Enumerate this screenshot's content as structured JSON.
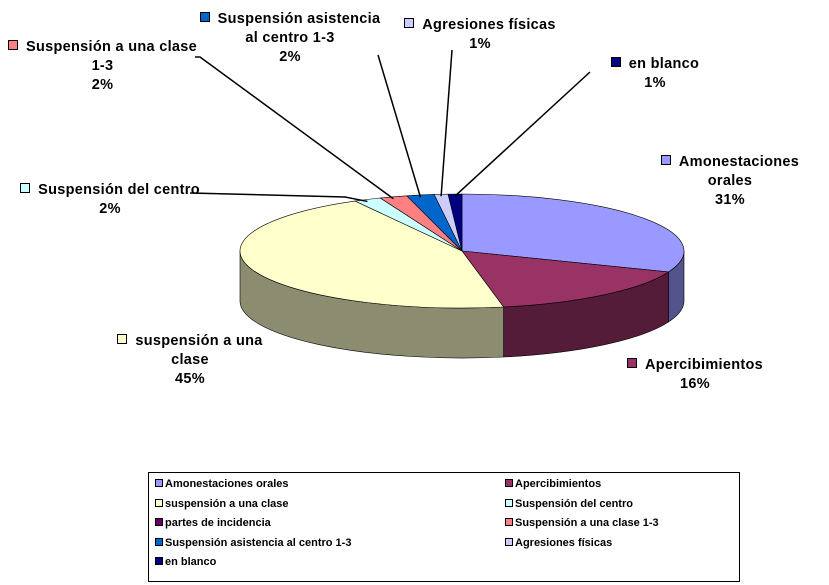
{
  "chart_data": {
    "type": "pie",
    "categories": [
      "Amonestaciones orales",
      "Apercibimientos",
      "suspensión a una clase",
      "Suspensión del centro",
      "partes de incidencia",
      "Suspensión a una clase 1-3",
      "Suspensión asistencia al centro 1-3",
      "Agresiones físicas",
      "en blanco"
    ],
    "values": [
      31,
      16,
      45,
      2,
      0,
      2,
      2,
      1,
      1
    ],
    "value_labels": [
      "31%",
      "16%",
      "45%",
      "2%",
      null,
      "2%",
      "2%",
      "1%",
      "1%"
    ],
    "colors": [
      "#9999ff",
      "#993366",
      "#ffffcc",
      "#ccffff",
      "#660066",
      "#ff8080",
      "#0066cc",
      "#ccccff",
      "#000080"
    ],
    "legend": "bottom"
  }
}
